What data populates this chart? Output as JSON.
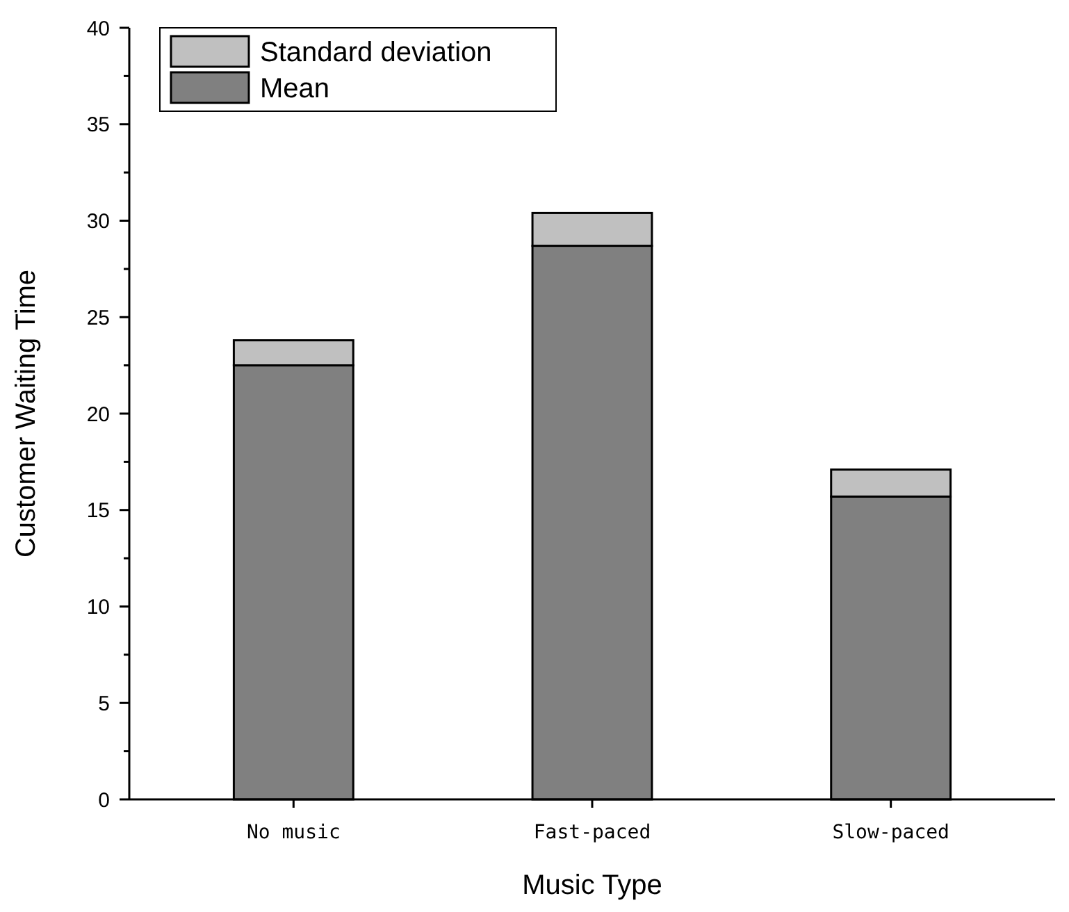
{
  "chart_data": {
    "type": "bar",
    "stacked": true,
    "xlabel": "Music Type",
    "ylabel": "Customer Waiting Time",
    "categories": [
      "No music",
      "Fast-paced",
      "Slow-paced"
    ],
    "series": [
      {
        "name": "Mean",
        "color": "#808080",
        "values": [
          22.5,
          28.7,
          15.7
        ]
      },
      {
        "name": "Standard deviation",
        "color": "#c0c0c0",
        "values": [
          1.3,
          1.7,
          1.4
        ]
      }
    ],
    "ylim": [
      0,
      40
    ],
    "yticks": [
      0,
      {
        "value": 2.5,
        "label": null
      },
      5,
      {
        "value": 7.5,
        "label": null
      },
      10,
      {
        "value": 12.5,
        "label": null
      },
      15,
      {
        "value": 17.5,
        "label": null
      },
      20,
      {
        "value": 22.5,
        "label": null
      },
      25,
      {
        "value": 27.5,
        "label": null
      },
      30,
      {
        "value": 32.5,
        "label": null
      },
      35,
      {
        "value": 37.5,
        "label": null
      },
      40
    ],
    "legend": "top left",
    "grid": false
  }
}
